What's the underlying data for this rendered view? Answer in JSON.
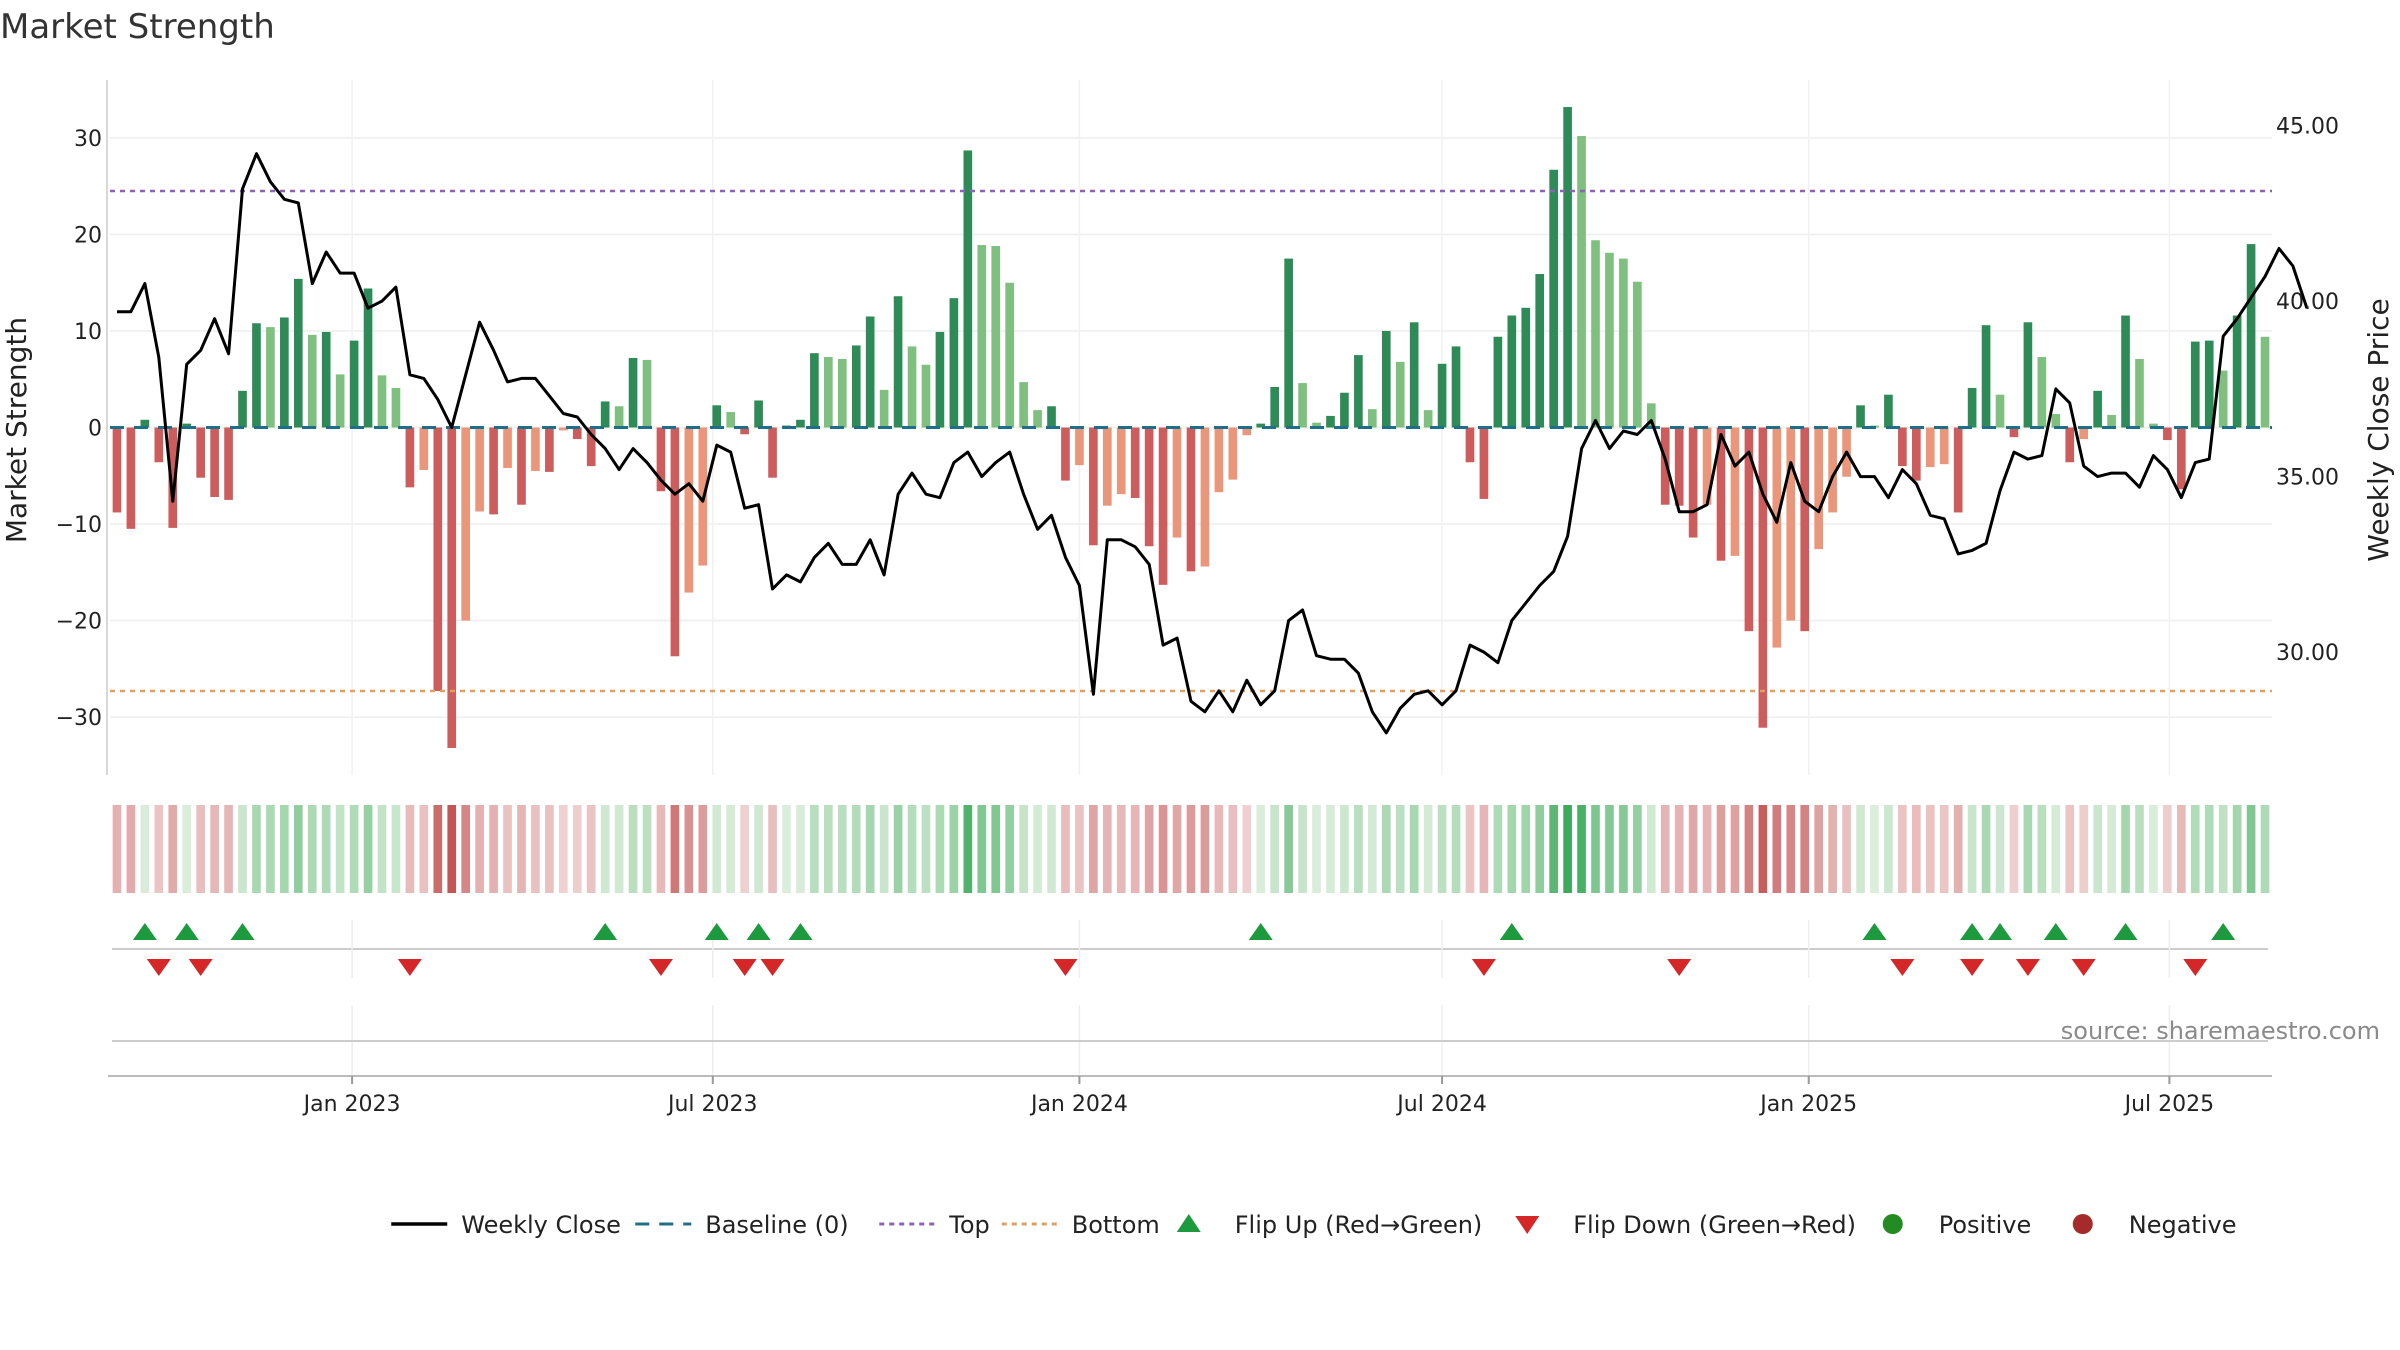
{
  "chart_data": {
    "type": "bar",
    "title": "Market Strength",
    "ylabel": "Market Strength",
    "y2label": "Weekly Close Price",
    "ylim": [
      -36,
      36
    ],
    "y2lim": [
      26.5,
      46.3
    ],
    "yticks": [
      -30,
      -20,
      -10,
      0,
      10,
      20,
      30
    ],
    "yticklabels": [
      "−30",
      "−20",
      "−10",
      "0",
      "10",
      "20",
      "30"
    ],
    "y2ticks": [
      30,
      35,
      40,
      45
    ],
    "y2ticklabels": [
      "30.00",
      "35.00",
      "40.00",
      "45.00"
    ],
    "grid": true,
    "start_date": "2022-09-05",
    "interval_days": 7,
    "xticks": [
      {
        "date": "2023-01-01",
        "label": "Jan 2023"
      },
      {
        "date": "2023-07-01",
        "label": "Jul 2023"
      },
      {
        "date": "2024-01-01",
        "label": "Jan 2024"
      },
      {
        "date": "2024-07-01",
        "label": "Jul 2024"
      },
      {
        "date": "2025-01-01",
        "label": "Jan 2025"
      },
      {
        "date": "2025-07-01",
        "label": "Jul 2025"
      }
    ],
    "top_line": 24.5,
    "bottom_line": -27.3,
    "baseline": 0,
    "series": [
      {
        "name": "Market Strength",
        "values": [
          -8.8,
          -10.5,
          0.8,
          -3.6,
          -10.4,
          0.4,
          -5.2,
          -7.2,
          -7.5,
          3.8,
          10.8,
          10.4,
          11.4,
          15.4,
          9.6,
          9.9,
          5.5,
          9.0,
          14.4,
          5.4,
          4.1,
          -6.2,
          -4.4,
          -27.3,
          -33.2,
          -20.0,
          -8.7,
          -9.0,
          -4.2,
          -8.0,
          -4.5,
          -4.6,
          -0.3,
          -1.2,
          -4.0,
          2.7,
          2.2,
          7.2,
          7.0,
          -6.6,
          -23.7,
          -17.1,
          -14.3,
          2.3,
          1.6,
          -0.7,
          2.8,
          -5.2,
          0.2,
          0.8,
          7.7,
          7.3,
          7.1,
          8.5,
          11.5,
          3.9,
          13.6,
          8.4,
          6.5,
          9.9,
          13.4,
          28.7,
          18.9,
          18.8,
          15.0,
          4.7,
          1.8,
          2.2,
          -5.5,
          -3.9,
          -12.2,
          -8.1,
          -6.9,
          -7.3,
          -12.3,
          -16.3,
          -11.4,
          -14.9,
          -14.4,
          -6.7,
          -5.4,
          -0.8,
          0.4,
          4.2,
          17.5,
          4.6,
          0.5,
          1.2,
          3.6,
          7.5,
          1.9,
          10.0,
          6.8,
          10.9,
          1.8,
          6.6,
          8.4,
          -3.6,
          -7.4,
          9.4,
          11.6,
          12.4,
          15.9,
          26.7,
          33.2,
          30.2,
          19.4,
          18.1,
          17.5,
          15.1,
          2.5,
          -8.0,
          -8.1,
          -11.4,
          -8.0,
          -13.8,
          -13.3,
          -21.1,
          -31.1,
          -22.8,
          -20.0,
          -21.1,
          -12.6,
          -8.8,
          -5.1,
          2.3,
          0.2,
          3.4,
          -4.0,
          -5.5,
          -4.1,
          -3.8,
          -8.8,
          4.1,
          10.6,
          3.4,
          -1.0,
          10.9,
          7.3,
          1.4,
          -3.6,
          -1.2,
          3.8,
          1.3,
          11.6,
          7.1,
          0.4,
          -1.3,
          -6.4,
          8.9,
          9.0,
          5.9,
          11.6,
          19.0,
          9.4
        ]
      },
      {
        "name": "Weekly Close",
        "values": [
          39.7,
          39.7,
          40.5,
          38.4,
          34.3,
          38.2,
          38.6,
          39.5,
          38.5,
          43.2,
          44.2,
          43.4,
          42.9,
          42.8,
          40.5,
          41.4,
          40.8,
          40.8,
          39.8,
          40.0,
          40.4,
          37.9,
          37.8,
          37.2,
          36.4,
          37.9,
          39.4,
          38.6,
          37.7,
          37.8,
          37.8,
          37.3,
          36.8,
          36.7,
          36.2,
          35.8,
          35.2,
          35.8,
          35.4,
          34.9,
          34.5,
          34.8,
          34.3,
          35.9,
          35.7,
          34.1,
          34.2,
          31.8,
          32.2,
          32.0,
          32.7,
          33.1,
          32.5,
          32.5,
          33.2,
          32.2,
          34.5,
          35.1,
          34.5,
          34.4,
          35.4,
          35.7,
          35.0,
          35.4,
          35.7,
          34.5,
          33.5,
          33.9,
          32.7,
          31.9,
          28.8,
          33.2,
          33.2,
          33.0,
          32.5,
          30.2,
          30.4,
          28.6,
          28.3,
          28.9,
          28.3,
          29.2,
          28.5,
          28.9,
          30.9,
          31.2,
          29.9,
          29.8,
          29.8,
          29.4,
          28.3,
          27.7,
          28.4,
          28.8,
          28.9,
          28.5,
          28.9,
          30.2,
          30.0,
          29.7,
          30.9,
          31.4,
          31.9,
          32.3,
          33.3,
          35.8,
          36.6,
          35.8,
          36.3,
          36.2,
          36.6,
          35.5,
          34.0,
          34.0,
          34.2,
          36.2,
          35.3,
          35.7,
          34.5,
          33.7,
          35.4,
          34.3,
          34.0,
          35.0,
          35.7,
          35.0,
          35.0,
          34.4,
          35.2,
          34.8,
          33.9,
          33.8,
          32.8,
          32.9,
          33.1,
          34.6,
          35.7,
          35.5,
          35.6,
          37.5,
          37.1,
          35.3,
          35.0,
          35.1,
          35.1,
          34.7,
          35.6,
          35.2,
          34.4,
          35.4,
          35.5,
          39.0,
          39.5,
          40.1,
          40.7,
          41.5,
          41.0,
          39.8
        ]
      }
    ],
    "flip_up_indices": [
      2,
      5,
      9,
      35,
      43,
      46,
      49,
      82,
      100,
      126,
      133,
      135,
      139,
      144,
      151
    ],
    "flip_down_indices": [
      3,
      6,
      21,
      39,
      45,
      47,
      68,
      98,
      112,
      128,
      133,
      137,
      141,
      149
    ],
    "legend": [
      {
        "label": "Weekly Close",
        "kind": "line",
        "color": "#000000"
      },
      {
        "label": "Baseline (0)",
        "kind": "dash",
        "color": "#1f6f8b"
      },
      {
        "label": "Top",
        "kind": "dot",
        "color": "#8e63b5"
      },
      {
        "label": "Bottom",
        "kind": "dot",
        "color": "#e0a060"
      },
      {
        "label": "Flip Up (Red→Green)",
        "kind": "tri-up",
        "color": "#1e9a3e"
      },
      {
        "label": "Flip Down (Green→Red)",
        "kind": "tri-down",
        "color": "#d62728"
      },
      {
        "label": "Positive",
        "kind": "circle",
        "color": "#228b22"
      },
      {
        "label": "Negative",
        "kind": "circle",
        "color": "#a52a2a"
      }
    ],
    "legend_position": "bottom-center",
    "source": "source: sharemaestro.com",
    "colors": {
      "pos_strong": "#2e8b57",
      "pos_light": "#7fbf7f",
      "neg_strong": "#cd5c5c",
      "neg_light": "#e9967a",
      "close_line": "#000000",
      "top_line": "#8e63b5",
      "bottom_line": "#e0a060",
      "baseline": "#1f6f8b"
    }
  }
}
